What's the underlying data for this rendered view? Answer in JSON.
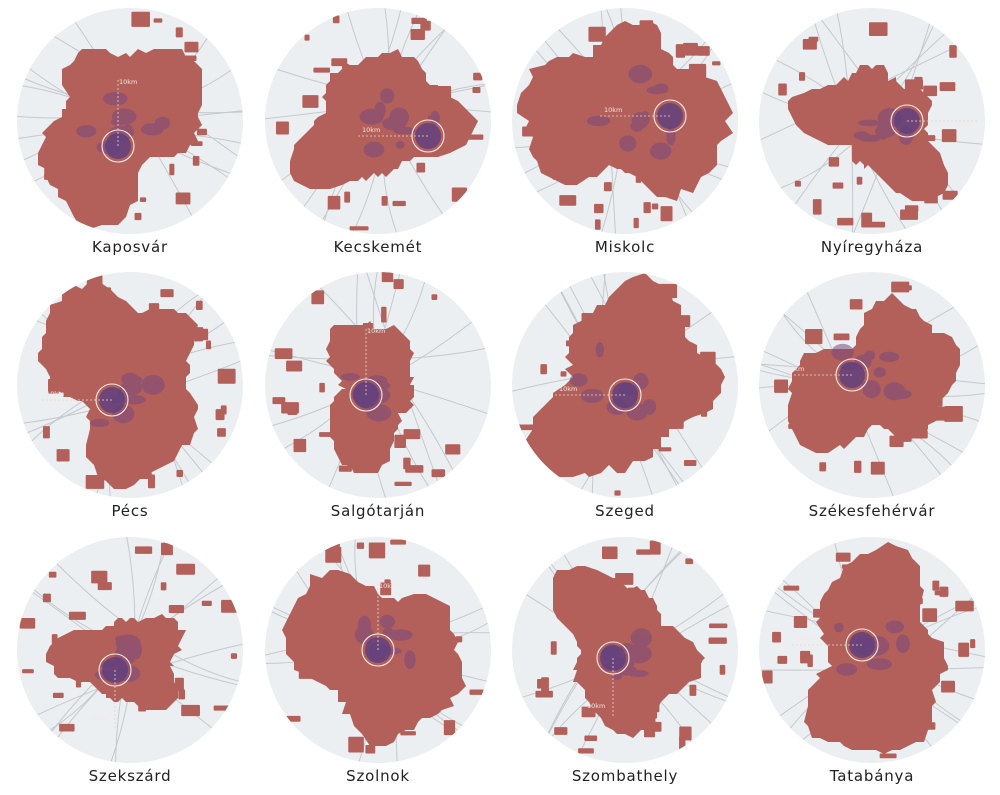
{
  "title": "",
  "scale_label": "10km",
  "colors": {
    "background": "#ffffff",
    "map_circle": "#eceff1",
    "road": "#c3c9cd",
    "urban_fill": "#b35f5a",
    "urban_dense": "#7a4a7c",
    "urban_core": "#5b3f80",
    "center_ring": "#f6ece6",
    "caption": "#222222"
  },
  "cities": [
    {
      "name": "Kaposvár",
      "scale_direction": "up"
    },
    {
      "name": "Kecskemét",
      "scale_direction": "left"
    },
    {
      "name": "Miskolc",
      "scale_direction": "left"
    },
    {
      "name": "Nyíregyháza",
      "scale_direction": "right"
    },
    {
      "name": "Pécs",
      "scale_direction": "left"
    },
    {
      "name": "Salgótarján",
      "scale_direction": "up"
    },
    {
      "name": "Szeged",
      "scale_direction": "left"
    },
    {
      "name": "Székesfehérvár",
      "scale_direction": "left"
    },
    {
      "name": "Szekszárd",
      "scale_direction": "down"
    },
    {
      "name": "Szolnok",
      "scale_direction": "up"
    },
    {
      "name": "Szombathely",
      "scale_direction": "down"
    },
    {
      "name": "Tatabánya",
      "scale_direction": "left"
    }
  ]
}
